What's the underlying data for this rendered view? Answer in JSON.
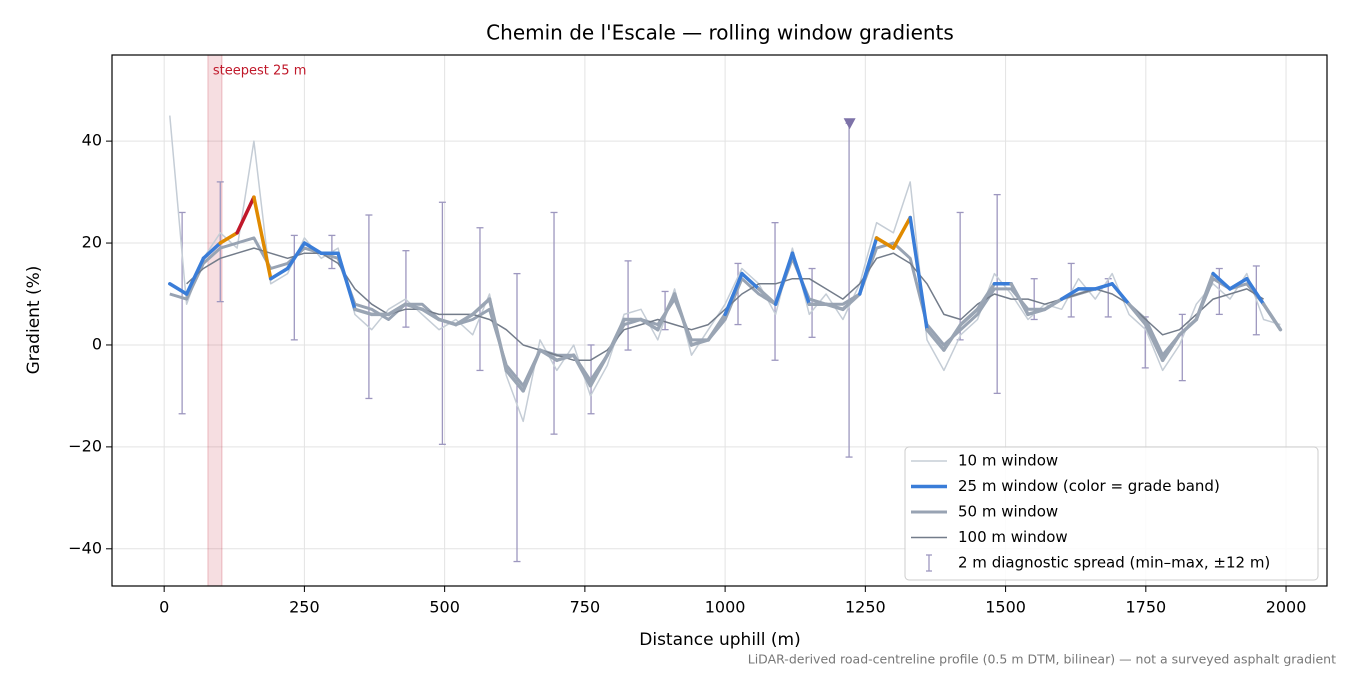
{
  "chart_data": {
    "type": "line",
    "title": "Chemin de l'Escale — rolling window gradients",
    "xlabel": "Distance uphill (m)",
    "ylabel": "Gradient (%)",
    "footnote": "LiDAR-derived road-centreline profile (0.5 m DTM, bilinear) — not a surveyed asphalt gradient",
    "xlim": [
      -93,
      2073
    ],
    "ylim": [
      -47.3,
      56.9
    ],
    "xticks": [
      0,
      250,
      500,
      750,
      1000,
      1250,
      1500,
      1750,
      2000
    ],
    "yticks": [
      {
        "value": -40,
        "label": "−40"
      },
      {
        "value": -20,
        "label": "−20"
      },
      0,
      20,
      40
    ],
    "grid": true,
    "legend": "lower right",
    "x": [
      10,
      40,
      70,
      100,
      130,
      160,
      190,
      220,
      250,
      280,
      310,
      340,
      370,
      400,
      430,
      460,
      490,
      520,
      550,
      580,
      610,
      640,
      670,
      700,
      730,
      760,
      790,
      820,
      850,
      880,
      910,
      940,
      970,
      1000,
      1030,
      1060,
      1090,
      1120,
      1150,
      1180,
      1210,
      1240,
      1270,
      1300,
      1330,
      1360,
      1390,
      1420,
      1450,
      1480,
      1510,
      1540,
      1570,
      1600,
      1630,
      1660,
      1690,
      1720,
      1750,
      1780,
      1810,
      1840,
      1870,
      1900,
      1930,
      1960,
      1990
    ],
    "series": [
      {
        "name": "10 m window",
        "color": "#c5cdd6",
        "width": 1.5,
        "values": [
          45,
          8,
          17,
          22,
          19,
          40,
          12,
          14,
          21,
          17,
          19,
          6,
          3,
          7,
          9,
          6,
          3,
          5,
          2,
          10,
          -6,
          -15,
          1,
          -5,
          0,
          -10,
          -4,
          6,
          7,
          1,
          11,
          -2,
          3,
          8,
          15,
          12,
          6,
          19,
          6,
          10,
          5,
          12,
          24,
          22,
          32,
          1,
          -5,
          2,
          5,
          14,
          10,
          5,
          8,
          7,
          13,
          9,
          14,
          6,
          3,
          -5,
          0,
          8,
          12,
          9,
          14,
          5,
          4
        ]
      },
      {
        "name": "50 m window",
        "color": "#98a3b3",
        "width": 3,
        "values": [
          10,
          9,
          16,
          19,
          20,
          21,
          15,
          16,
          19,
          18,
          17,
          8,
          7,
          5,
          8,
          8,
          5,
          4,
          5,
          7,
          -4,
          -8,
          -1,
          -2,
          -2,
          -7,
          -2,
          4,
          5,
          4,
          9,
          1,
          1,
          5,
          13,
          10,
          8,
          17,
          9,
          8,
          8,
          10,
          19,
          20,
          17,
          4,
          0,
          3,
          6,
          11,
          11,
          7,
          7,
          9,
          10,
          11,
          12,
          8,
          5,
          -2,
          2,
          5,
          13,
          11,
          12,
          8,
          3
        ]
      },
      {
        "name": "100 m window",
        "color": "#737c8a",
        "width": 1.5,
        "values": [
          null,
          12,
          15,
          17,
          18,
          19,
          18,
          17,
          18,
          18,
          16,
          11,
          8,
          6,
          7,
          7,
          6,
          6,
          6,
          5,
          3,
          0,
          -1,
          -2,
          -3,
          -3,
          -1,
          3,
          4,
          5,
          4,
          3,
          4,
          7,
          10,
          12,
          12,
          13,
          13,
          11,
          9,
          12,
          17,
          18,
          16,
          12,
          6,
          5,
          8,
          10,
          9,
          9,
          8,
          9,
          10,
          11,
          10,
          8,
          5,
          2,
          3,
          6,
          9,
          10,
          11,
          9,
          null
        ]
      },
      {
        "name": "25 m window (color = grade band)",
        "color": "#3a7dd8",
        "width": 3.5,
        "legend_order": 1,
        "below_color": "#9aa5b4",
        "grade_bands": [
          {
            "from": 10,
            "color": "#3a7dd8"
          },
          {
            "from": 20,
            "color": "#e08a00"
          },
          {
            "from": 25,
            "color": "#c0182a"
          }
        ],
        "values": [
          12,
          10,
          17,
          20,
          22,
          29,
          13,
          15,
          20,
          18,
          18,
          7,
          6,
          6,
          8,
          7,
          5,
          4,
          6,
          9,
          -5,
          -9,
          -1,
          -3,
          -2,
          -8,
          -2,
          5,
          5,
          3,
          10,
          0,
          1,
          6,
          14,
          11,
          8,
          18,
          8,
          8,
          7,
          10,
          21,
          19,
          25,
          3,
          -1,
          4,
          7,
          12,
          12,
          6,
          7,
          9,
          11,
          11,
          12,
          8,
          4,
          -3,
          2,
          5,
          14,
          11,
          13,
          8,
          3
        ]
      }
    ],
    "error_bars": {
      "name": "2 m diagnostic spread (min–max, ±12 m)",
      "color": "#9d97bf",
      "x": [
        32,
        100,
        232,
        299,
        365,
        431,
        496,
        563,
        629,
        695,
        761,
        827,
        893,
        1023,
        1089,
        1155,
        1221,
        1419,
        1485,
        1551,
        1617,
        1683,
        1749,
        1815,
        1881,
        1947
      ],
      "low": [
        -13.5,
        8.5,
        1,
        15,
        -10.5,
        3.5,
        -19.5,
        -5,
        -42.5,
        -17.5,
        -13.5,
        -1,
        3,
        4,
        -3,
        1.5,
        -22,
        1,
        -9.5,
        5,
        5.5,
        5.5,
        -4.5,
        -7,
        6,
        2
      ],
      "high": [
        26,
        32,
        21.5,
        21.5,
        25.5,
        18.5,
        28,
        23,
        14,
        26,
        0,
        16.5,
        10.5,
        16,
        24,
        15,
        43.5,
        26,
        29.5,
        13,
        16,
        13,
        5.5,
        6,
        15,
        15.5
      ]
    },
    "peak_marker": {
      "x": 1222,
      "y": 43.5,
      "color": "#7d72a8"
    },
    "highlight": {
      "label": "steepest 25 m",
      "x": [
        78,
        103
      ],
      "color": "#c0182a"
    }
  }
}
